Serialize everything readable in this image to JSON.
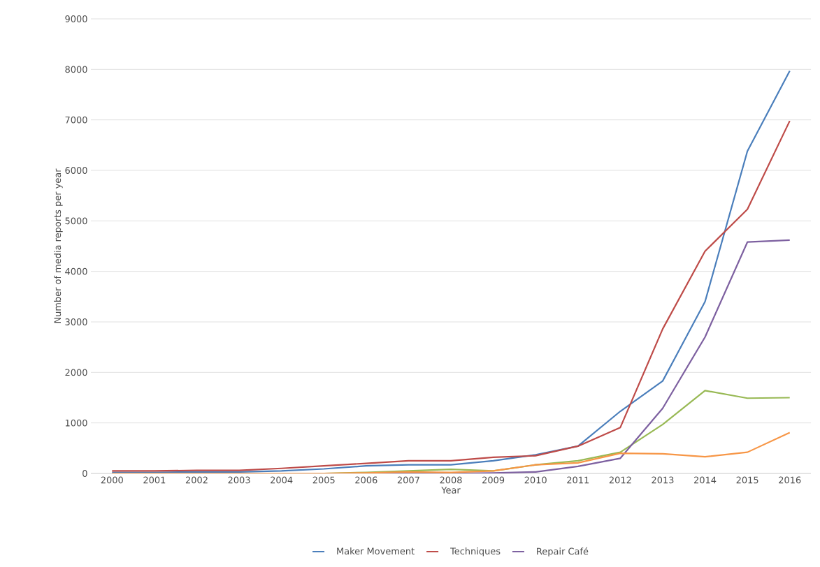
{
  "chart_data": {
    "type": "line",
    "xlabel": "Year",
    "ylabel": "Number of media reports per year",
    "categories": [
      "2000",
      "2001",
      "2002",
      "2003",
      "2004",
      "2005",
      "2006",
      "2007",
      "2008",
      "2009",
      "2010",
      "2011",
      "2012",
      "2013",
      "2014",
      "2015",
      "2016"
    ],
    "series": [
      {
        "name": "Maker Movement",
        "color": "#4a7ebb",
        "values": [
          20,
          20,
          30,
          30,
          50,
          90,
          150,
          170,
          170,
          250,
          370,
          540,
          1230,
          1830,
          3400,
          6380,
          7970
        ]
      },
      {
        "name": "Techniques",
        "color": "#be4b48",
        "values": [
          50,
          50,
          60,
          60,
          100,
          150,
          200,
          250,
          250,
          320,
          350,
          540,
          910,
          2860,
          4400,
          5230,
          6980
        ]
      },
      {
        "color": "#98b954",
        "values": [
          null,
          null,
          null,
          null,
          0,
          0,
          20,
          50,
          80,
          50,
          170,
          250,
          420,
          970,
          1640,
          1490,
          1500
        ]
      },
      {
        "name": "Repair Café",
        "color": "#7d60a0",
        "values": [
          0,
          0,
          0,
          0,
          0,
          0,
          0,
          0,
          0,
          10,
          30,
          140,
          300,
          1290,
          2700,
          4580,
          4620
        ]
      },
      {
        "color": "#f79646",
        "values": [
          0,
          0,
          0,
          0,
          0,
          0,
          10,
          30,
          20,
          50,
          170,
          210,
          400,
          390,
          330,
          420,
          810
        ]
      }
    ],
    "ylim": [
      0,
      9000
    ],
    "yticks": [
      0,
      1000,
      2000,
      3000,
      4000,
      5000,
      6000,
      7000,
      8000,
      9000
    ],
    "grid": "y",
    "legend": "bottom",
    "marker": "none",
    "line_style": "solid"
  }
}
